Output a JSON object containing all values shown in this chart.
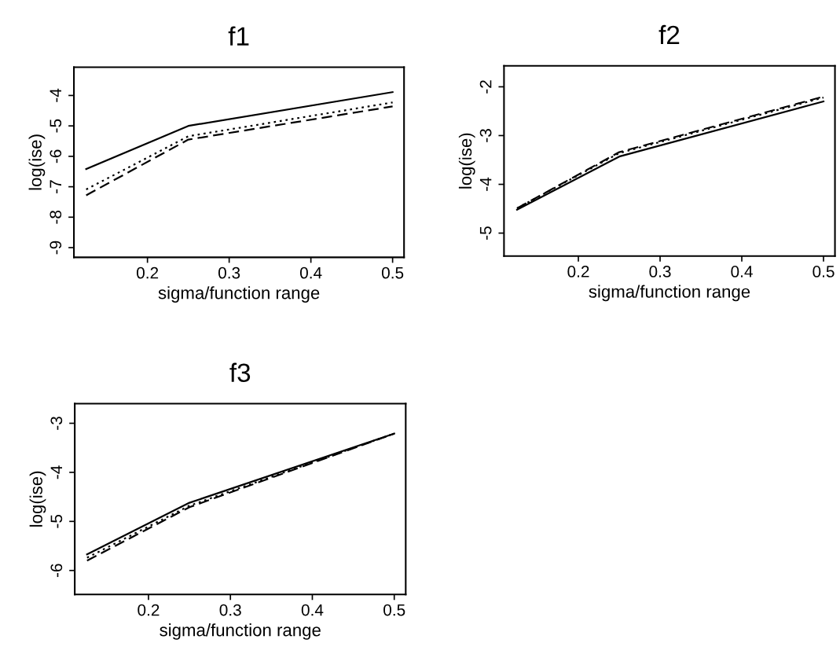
{
  "chart_data": [
    {
      "type": "line",
      "title": "f1",
      "xlabel": "sigma/function range",
      "ylabel": "log(ise)",
      "x": [
        0.125,
        0.25,
        0.5
      ],
      "xlim": [
        0.11,
        0.514
      ],
      "xticks": [
        0.2,
        0.3,
        0.4,
        0.5
      ],
      "ylim": [
        -9.32,
        -3.07
      ],
      "yticks": [
        -9,
        -8,
        -7,
        -6,
        -5,
        -4
      ],
      "grid": false,
      "series": [
        {
          "color": "#000000",
          "line_style": "solid",
          "values": [
            -6.42,
            -5.0,
            -3.89
          ]
        },
        {
          "color": "#000000",
          "line_style": "dotted",
          "values": [
            -7.09,
            -5.34,
            -4.23
          ]
        },
        {
          "color": "#000000",
          "line_style": "dashed",
          "values": [
            -7.28,
            -5.45,
            -4.36
          ]
        }
      ]
    },
    {
      "type": "line",
      "title": "f2",
      "xlabel": "sigma/function range",
      "ylabel": "log(ise)",
      "x": [
        0.125,
        0.25,
        0.5
      ],
      "xlim": [
        0.109,
        0.514
      ],
      "xticks": [
        0.2,
        0.3,
        0.4,
        0.5
      ],
      "ylim": [
        -5.47,
        -1.57
      ],
      "yticks": [
        -5,
        -4,
        -3,
        -2
      ],
      "grid": false,
      "series": [
        {
          "color": "#000000",
          "line_style": "solid",
          "values": [
            -4.52,
            -3.43,
            -2.3
          ]
        },
        {
          "color": "#000000",
          "line_style": "dotted",
          "values": [
            -4.49,
            -3.36,
            -2.22
          ]
        },
        {
          "color": "#000000",
          "line_style": "dashed",
          "values": [
            -4.49,
            -3.34,
            -2.2
          ]
        }
      ]
    },
    {
      "type": "line",
      "title": "f3",
      "xlabel": "sigma/function range",
      "ylabel": "log(ise)",
      "x": [
        0.125,
        0.25,
        0.5
      ],
      "xlim": [
        0.11,
        0.514
      ],
      "xticks": [
        0.2,
        0.3,
        0.4,
        0.5
      ],
      "ylim": [
        -6.49,
        -2.6
      ],
      "yticks": [
        -6,
        -5,
        -4,
        -3
      ],
      "grid": false,
      "series": [
        {
          "color": "#000000",
          "line_style": "solid",
          "values": [
            -5.67,
            -4.62,
            -3.21
          ]
        },
        {
          "color": "#000000",
          "line_style": "dotted",
          "values": [
            -5.74,
            -4.68,
            -3.21
          ]
        },
        {
          "color": "#000000",
          "line_style": "dashed",
          "values": [
            -5.8,
            -4.71,
            -3.21
          ]
        }
      ]
    }
  ]
}
